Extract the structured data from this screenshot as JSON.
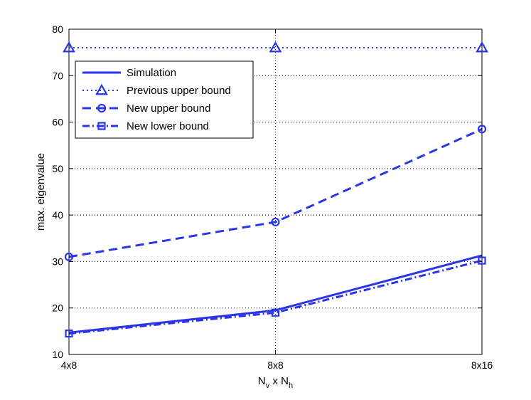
{
  "chart_data": {
    "type": "line",
    "title": "",
    "categories": [
      "4x8",
      "8x8",
      "8x16"
    ],
    "xlabel": {
      "main": "N",
      "sub1": "v",
      "mid": " x N",
      "sub2": "h"
    },
    "ylabel": "max. eigenvalue",
    "ylim": [
      10,
      80
    ],
    "yticks": [
      10,
      20,
      30,
      40,
      50,
      60,
      70,
      80
    ],
    "grid": true,
    "legend_position": "top-left",
    "line_color": "#2b35e8",
    "series": [
      {
        "name": "Simulation",
        "values": [
          14.7,
          19.5,
          31.3
        ],
        "dash": "solid",
        "marker": "none"
      },
      {
        "name": "Previous upper bound",
        "values": [
          76,
          76,
          76
        ],
        "dash": "dotted",
        "marker": "triangle"
      },
      {
        "name": "New upper bound",
        "values": [
          31,
          38.5,
          58.5
        ],
        "dash": "dashed",
        "marker": "circle"
      },
      {
        "name": "New lower bound",
        "values": [
          14.5,
          19,
          30.2
        ],
        "dash": "dashdot",
        "marker": "square"
      }
    ]
  }
}
